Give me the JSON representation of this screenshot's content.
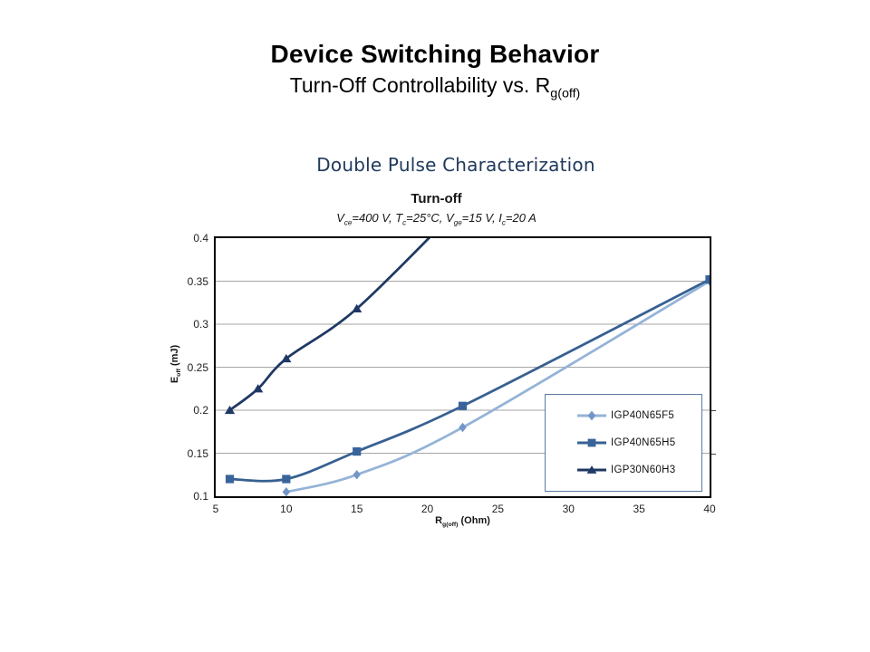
{
  "slide": {
    "title": "Device Switching Behavior",
    "subtitle_rich": [
      {
        "t": "Turn-Off Controllability vs. R"
      },
      {
        "s": "g(off)"
      }
    ],
    "section_heading": "Double Pulse Characterization"
  },
  "chart_data": {
    "type": "line",
    "title": "Turn-off",
    "conditions_text": "Vce=400 V, Tc=25°C, Vge=15 V, Ic=20 A",
    "conditions_rich": [
      {
        "t": "V"
      },
      {
        "s": "ce"
      },
      {
        "t": "=400 V, T"
      },
      {
        "s": "c"
      },
      {
        "t": "=25°C, V"
      },
      {
        "s": "ge"
      },
      {
        "t": "=15 V, I"
      },
      {
        "s": "c"
      },
      {
        "t": "=20 A"
      }
    ],
    "xlabel": "Rg(off) (Ohm)",
    "xlabel_rich": [
      {
        "t": "R"
      },
      {
        "s": "g(off)"
      },
      {
        "t": " (Ohm)"
      }
    ],
    "ylabel": "Eoff (mJ)",
    "ylabel_rich": [
      {
        "t": "E"
      },
      {
        "s": "off"
      },
      {
        "t": " (mJ)"
      }
    ],
    "xlim": [
      5,
      40
    ],
    "ylim": [
      0.1,
      0.4
    ],
    "x_ticks": [
      5,
      10,
      15,
      20,
      25,
      30,
      35,
      40
    ],
    "x_tick_labels": [
      "5",
      "10",
      "15",
      "20",
      "25",
      "30",
      "35",
      "40"
    ],
    "y_ticks": [
      0.1,
      0.15,
      0.2,
      0.25,
      0.3,
      0.35,
      0.4
    ],
    "y_tick_labels": [
      "0.1",
      "0.15",
      "0.2",
      "0.25",
      "0.3",
      "0.35",
      "0.4"
    ],
    "grid": true,
    "legend_position": "inside-lower-right",
    "series": [
      {
        "name": "IGP40N65F5",
        "marker": "diamond",
        "color": "#95B3D7",
        "marker_color": "#7296C7",
        "points": [
          [
            10,
            0.105
          ],
          [
            15,
            0.125
          ],
          [
            22.5,
            0.18
          ],
          [
            40,
            0.35
          ]
        ]
      },
      {
        "name": "IGP40N65H5",
        "marker": "square",
        "color": "#376092",
        "marker_color": "#38649B",
        "points": [
          [
            6,
            0.12
          ],
          [
            10,
            0.12
          ],
          [
            15,
            0.152
          ],
          [
            22.5,
            0.205
          ],
          [
            40,
            0.352
          ]
        ]
      },
      {
        "name": "IGP30N60H3",
        "marker": "triangle",
        "color": "#1F3864",
        "marker_color": "#1F3864",
        "points": [
          [
            6,
            0.2
          ],
          [
            8,
            0.225
          ],
          [
            10,
            0.26
          ],
          [
            15,
            0.318
          ]
        ],
        "offscreen_continuation": [
          22.5,
          0.44
        ],
        "note": "line exits plot top (E=0.4) near Rg=20"
      }
    ],
    "layout": {
      "grid_color": "#A6A6A6",
      "plot_border_color": "#000000",
      "right_tick_values": [
        0.2,
        0.15
      ]
    }
  }
}
